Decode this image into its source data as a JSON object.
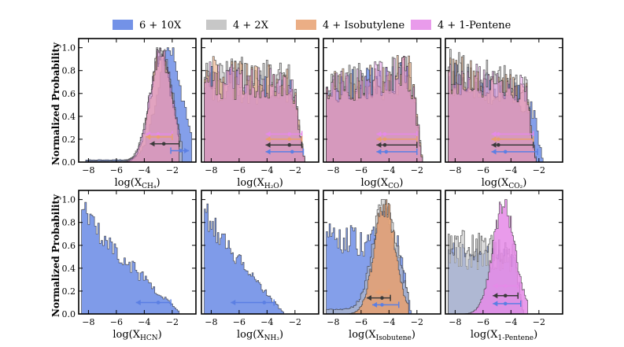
{
  "figure": {
    "y_axis_label": "Normalized Probability",
    "legend": [
      {
        "label": "6 + 10X",
        "color": "#5b7fe3"
      },
      {
        "label": "4 + 2X",
        "color": "#bdbdbd"
      },
      {
        "label": "4 + Isobutylene",
        "color": "#e8a070"
      },
      {
        "label": "4 + 1-Pentene",
        "color": "#e58ae8"
      }
    ]
  },
  "chart_data": [
    {
      "type": "histogram",
      "xlabel": "log(X_CH4)",
      "xlabel_base": "log(X",
      "xlabel_sub": "CH₄",
      "xlabel_end": ")",
      "xlim": [
        -8.7,
        -0.3
      ],
      "ylim": [
        0,
        1.08
      ],
      "xticks": [
        -8,
        -6,
        -4,
        -2
      ],
      "yticks": [
        0.0,
        0.2,
        0.4,
        0.6,
        0.8,
        1.0
      ],
      "series": [
        {
          "name": "6 + 10X",
          "color": "#5b7fe3",
          "shape": "peak",
          "center": -2.2,
          "width": 0.9,
          "lo": -8.2,
          "hi": -0.6,
          "floor": 0.02,
          "seed": 1,
          "alpha": 0.75
        },
        {
          "name": "4 + 2X",
          "color": "#bdbdbd",
          "shape": "peak",
          "center": -2.8,
          "width": 0.8,
          "lo": -8.2,
          "hi": -1.3,
          "floor": 0.01,
          "seed": 2,
          "alpha": 0.6
        },
        {
          "name": "4 + Isobutylene",
          "color": "#e8a070",
          "shape": "peak",
          "center": -2.8,
          "width": 0.75,
          "lo": -5.5,
          "hi": -1.5,
          "floor": 0.0,
          "seed": 3,
          "alpha": 0.55
        },
        {
          "name": "4 + 1-Pentene",
          "color": "#e58ae8",
          "shape": "peak",
          "center": -2.8,
          "width": 0.8,
          "lo": -5.5,
          "hi": -1.5,
          "floor": 0.0,
          "seed": 4,
          "alpha": 0.45
        }
      ],
      "errorbars": [
        {
          "series": "4 + 1-Pentene",
          "y": 0.245,
          "x": -3.0,
          "lo": -3.9,
          "hi": -2.0,
          "dir": "left"
        },
        {
          "series": "4 + Isobutylene",
          "y": 0.22,
          "x": -3.0,
          "lo": -3.9,
          "hi": -2.0,
          "dir": "left"
        },
        {
          "series": "4 + 2X",
          "y": 0.16,
          "x": -2.6,
          "lo": -3.6,
          "hi": -1.5,
          "dir": "left"
        },
        {
          "series": "6 + 10X",
          "y": 0.1,
          "x": -1.4,
          "lo": -2.1,
          "hi": -0.8,
          "dir": "right"
        }
      ]
    },
    {
      "type": "histogram",
      "xlabel": "log(X_H2O)",
      "xlabel_base": "log(X",
      "xlabel_sub": "H₂O",
      "xlabel_end": ")",
      "xlim": [
        -8.7,
        -0.3
      ],
      "ylim": [
        0,
        1.08
      ],
      "xticks": [
        -8,
        -6,
        -4,
        -2
      ],
      "yticks": [],
      "series": [
        {
          "name": "6 + 10X",
          "color": "#5b7fe3",
          "shape": "flat",
          "lvl0": 0.75,
          "lvl1": 0.62,
          "lo": -8.5,
          "hi": -1.3,
          "seed": 5,
          "alpha": 0.75
        },
        {
          "name": "4 + 2X",
          "color": "#bdbdbd",
          "shape": "flat",
          "lvl0": 0.85,
          "lvl1": 0.75,
          "lo": -8.5,
          "hi": -1.3,
          "seed": 6,
          "alpha": 0.6
        },
        {
          "name": "4 + Isobutylene",
          "color": "#e8a070",
          "shape": "flat",
          "lvl0": 0.82,
          "lvl1": 0.72,
          "lo": -8.5,
          "hi": -1.3,
          "seed": 7,
          "alpha": 0.55
        },
        {
          "name": "4 + 1-Pentene",
          "color": "#e58ae8",
          "shape": "flat",
          "lvl0": 0.78,
          "lvl1": 0.7,
          "lo": -8.5,
          "hi": -1.3,
          "seed": 8,
          "alpha": 0.45
        }
      ],
      "errorbars": [
        {
          "series": "4 + 1-Pentene",
          "y": 0.245,
          "x": -2.4,
          "lo": -4.1,
          "hi": -1.5,
          "dir": "left"
        },
        {
          "series": "4 + Isobutylene",
          "y": 0.2,
          "x": -2.4,
          "lo": -4.1,
          "hi": -1.5,
          "dir": "left"
        },
        {
          "series": "4 + 2X",
          "y": 0.15,
          "x": -2.4,
          "lo": -4.1,
          "hi": -1.5,
          "dir": "left"
        },
        {
          "series": "6 + 10X",
          "y": 0.09,
          "x": -2.2,
          "lo": -4.1,
          "hi": -1.4,
          "dir": "left"
        }
      ]
    },
    {
      "type": "histogram",
      "xlabel": "log(X_CO)",
      "xlabel_base": "log(X",
      "xlabel_sub": "CO",
      "xlabel_end": ")",
      "xlim": [
        -8.7,
        -0.3
      ],
      "ylim": [
        0,
        1.08
      ],
      "xticks": [
        -8,
        -6,
        -4,
        -2
      ],
      "yticks": [],
      "series": [
        {
          "name": "6 + 10X",
          "color": "#5b7fe3",
          "shape": "flat",
          "lvl0": 0.68,
          "lvl1": 0.8,
          "lo": -8.5,
          "hi": -1.6,
          "seed": 9,
          "alpha": 0.75
        },
        {
          "name": "4 + 2X",
          "color": "#bdbdbd",
          "shape": "flat",
          "lvl0": 0.72,
          "lvl1": 0.85,
          "lo": -8.5,
          "hi": -1.6,
          "seed": 10,
          "alpha": 0.6
        },
        {
          "name": "4 + Isobutylene",
          "color": "#e8a070",
          "shape": "flat",
          "lvl0": 0.7,
          "lvl1": 0.86,
          "lo": -8.5,
          "hi": -1.6,
          "seed": 11,
          "alpha": 0.55
        },
        {
          "name": "4 + 1-Pentene",
          "color": "#e58ae8",
          "shape": "flat",
          "lvl0": 0.7,
          "lvl1": 0.84,
          "lo": -8.5,
          "hi": -1.6,
          "seed": 12,
          "alpha": 0.45
        }
      ],
      "errorbars": [
        {
          "series": "4 + 1-Pentene",
          "y": 0.245,
          "x": -4.3,
          "lo": -4.9,
          "hi": -2.0,
          "dir": "left"
        },
        {
          "series": "4 + Isobutylene",
          "y": 0.2,
          "x": -4.3,
          "lo": -4.9,
          "hi": -2.0,
          "dir": "left"
        },
        {
          "series": "4 + 2X",
          "y": 0.15,
          "x": -4.3,
          "lo": -4.9,
          "hi": -2.0,
          "dir": "left"
        },
        {
          "series": "6 + 10X",
          "y": 0.09,
          "x": -4.2,
          "lo": -4.9,
          "hi": -2.0,
          "dir": "left"
        }
      ]
    },
    {
      "type": "histogram",
      "xlabel": "log(X_CO2)",
      "xlabel_base": "log(X",
      "xlabel_sub": "CO₂",
      "xlabel_end": ")",
      "xlim": [
        -8.7,
        -0.3
      ],
      "ylim": [
        0,
        1.08
      ],
      "xticks": [
        -8,
        -6,
        -4,
        -2
      ],
      "yticks": [],
      "series": [
        {
          "name": "6 + 10X",
          "color": "#5b7fe3",
          "shape": "flat",
          "lvl0": 0.8,
          "lvl1": 0.55,
          "lo": -8.5,
          "hi": -1.7,
          "seed": 13,
          "alpha": 0.75
        },
        {
          "name": "4 + 2X",
          "color": "#bdbdbd",
          "shape": "flat",
          "lvl0": 0.88,
          "lvl1": 0.68,
          "lo": -8.5,
          "hi": -2.2,
          "seed": 14,
          "alpha": 0.6
        },
        {
          "name": "4 + Isobutylene",
          "color": "#e8a070",
          "shape": "flat",
          "lvl0": 0.84,
          "lvl1": 0.66,
          "lo": -8.5,
          "hi": -2.2,
          "seed": 15,
          "alpha": 0.55
        },
        {
          "name": "4 + 1-Pentene",
          "color": "#e58ae8",
          "shape": "flat",
          "lvl0": 0.82,
          "lvl1": 0.64,
          "lo": -8.5,
          "hi": -2.2,
          "seed": 16,
          "alpha": 0.45
        }
      ],
      "errorbars": [
        {
          "series": "4 + 1-Pentene",
          "y": 0.245,
          "x": -4.9,
          "lo": -5.4,
          "hi": -2.4,
          "dir": "left"
        },
        {
          "series": "4 + Isobutylene",
          "y": 0.2,
          "x": -4.9,
          "lo": -5.4,
          "hi": -2.4,
          "dir": "left"
        },
        {
          "series": "4 + 2X",
          "y": 0.15,
          "x": -4.9,
          "lo": -5.4,
          "hi": -2.4,
          "dir": "left"
        },
        {
          "series": "6 + 10X",
          "y": 0.09,
          "x": -4.4,
          "lo": -5.4,
          "hi": -2.1,
          "dir": "left"
        }
      ]
    },
    {
      "type": "histogram",
      "xlabel": "log(X_HCN)",
      "xlabel_base": "log(X",
      "xlabel_sub": "HCN",
      "xlabel_end": ")",
      "xlim": [
        -8.7,
        -0.3
      ],
      "ylim": [
        0,
        1.08
      ],
      "xticks": [
        -8,
        -6,
        -4,
        -2
      ],
      "yticks": [
        0.0,
        0.2,
        0.4,
        0.6,
        0.8,
        1.0
      ],
      "series": [
        {
          "name": "6 + 10X",
          "color": "#5b7fe3",
          "shape": "decay",
          "lvl0": 0.96,
          "lvl1": 0.02,
          "lo": -8.5,
          "hi": -1.5,
          "seed": 17,
          "alpha": 0.78
        }
      ],
      "errorbars": [
        {
          "series": "6 + 10X",
          "y": 0.1,
          "x": -3.0,
          "lo": -4.6,
          "hi": -2.1,
          "dir": "left"
        }
      ]
    },
    {
      "type": "histogram",
      "xlabel": "log(X_NH3)",
      "xlabel_base": "log(X",
      "xlabel_sub": "NH₃",
      "xlabel_end": ")",
      "xlim": [
        -8.7,
        -0.3
      ],
      "ylim": [
        0,
        1.08
      ],
      "xticks": [
        -8,
        -6,
        -4,
        -2
      ],
      "yticks": [],
      "series": [
        {
          "name": "6 + 10X",
          "color": "#5b7fe3",
          "shape": "decay",
          "lvl0": 0.96,
          "lvl1": 0.01,
          "lo": -8.5,
          "hi": -2.8,
          "seed": 18,
          "alpha": 0.78
        }
      ],
      "errorbars": [
        {
          "series": "6 + 10X",
          "y": 0.1,
          "x": -4.2,
          "lo": -6.6,
          "hi": -3.5,
          "dir": "left"
        }
      ]
    },
    {
      "type": "histogram",
      "xlabel": "log(X_Isobutene)",
      "xlabel_base": "log(X",
      "xlabel_sub": "Isobutene",
      "xlabel_end": ")",
      "xlim": [
        -8.7,
        -0.3
      ],
      "ylim": [
        0,
        1.08
      ],
      "xticks": [
        -8,
        -6,
        -4,
        -2
      ],
      "yticks": [],
      "series": [
        {
          "name": "6 + 10X",
          "color": "#5b7fe3",
          "shape": "mixed",
          "lvl0": 0.75,
          "lvl1": 0.65,
          "center": -4.4,
          "width": 0.8,
          "lo": -8.5,
          "hi": -2.4,
          "seed": 19,
          "alpha": 0.75
        },
        {
          "name": "4 + 2X",
          "color": "#bdbdbd",
          "shape": "peak",
          "center": -4.3,
          "width": 0.85,
          "lo": -8.5,
          "hi": -2.6,
          "floor": 0.04,
          "seed": 20,
          "alpha": 0.55
        },
        {
          "name": "4 + Isobutylene",
          "color": "#e8a070",
          "shape": "peak",
          "center": -4.3,
          "width": 0.75,
          "lo": -7.0,
          "hi": -2.6,
          "floor": 0.0,
          "seed": 21,
          "alpha": 0.85
        }
      ],
      "errorbars": [
        {
          "series": "4 + Isobutylene",
          "y": 0.19,
          "x": -4.5,
          "lo": -5.0,
          "hi": -4.0,
          "dir": "left"
        },
        {
          "series": "4 + 2X",
          "y": 0.14,
          "x": -4.5,
          "lo": -5.6,
          "hi": -3.9,
          "dir": "left"
        },
        {
          "series": "6 + 10X",
          "y": 0.08,
          "x": -4.5,
          "lo": -5.2,
          "hi": -3.3,
          "dir": "left"
        }
      ]
    },
    {
      "type": "histogram",
      "xlabel": "log(X_1-Pentene)",
      "xlabel_base": "log(X",
      "xlabel_sub": "1-Pentene",
      "xlabel_end": ")",
      "xlim": [
        -8.7,
        -0.3
      ],
      "ylim": [
        0,
        1.08
      ],
      "xticks": [
        -8,
        -6,
        -4,
        -2
      ],
      "yticks": [],
      "series": [
        {
          "name": "6 + 10X",
          "color": "#5b7fe3",
          "shape": "flat",
          "lvl0": 0.55,
          "lvl1": 0.5,
          "lo": -8.5,
          "hi": -3.1,
          "seed": 22,
          "alpha": 0.6
        },
        {
          "name": "4 + 2X",
          "color": "#bdbdbd",
          "shape": "flat",
          "lvl0": 0.68,
          "lvl1": 0.55,
          "lo": -8.5,
          "hi": -3.1,
          "seed": 23,
          "alpha": 0.55
        },
        {
          "name": "4 + 1-Pentene",
          "color": "#e58ae8",
          "shape": "peak",
          "center": -4.5,
          "width": 0.8,
          "lo": -7.5,
          "hi": -2.8,
          "floor": 0.0,
          "seed": 24,
          "alpha": 0.85
        }
      ],
      "errorbars": [
        {
          "series": "4 + 1-Pentene",
          "y": 0.245,
          "x": -4.4,
          "lo": -5.3,
          "hi": -3.5,
          "dir": "left"
        },
        {
          "series": "4 + 2X",
          "y": 0.16,
          "x": -4.4,
          "lo": -5.3,
          "hi": -3.5,
          "dir": "left"
        },
        {
          "series": "6 + 10X",
          "y": 0.09,
          "x": -4.4,
          "lo": -5.3,
          "hi": -3.3,
          "dir": "left"
        }
      ]
    }
  ]
}
